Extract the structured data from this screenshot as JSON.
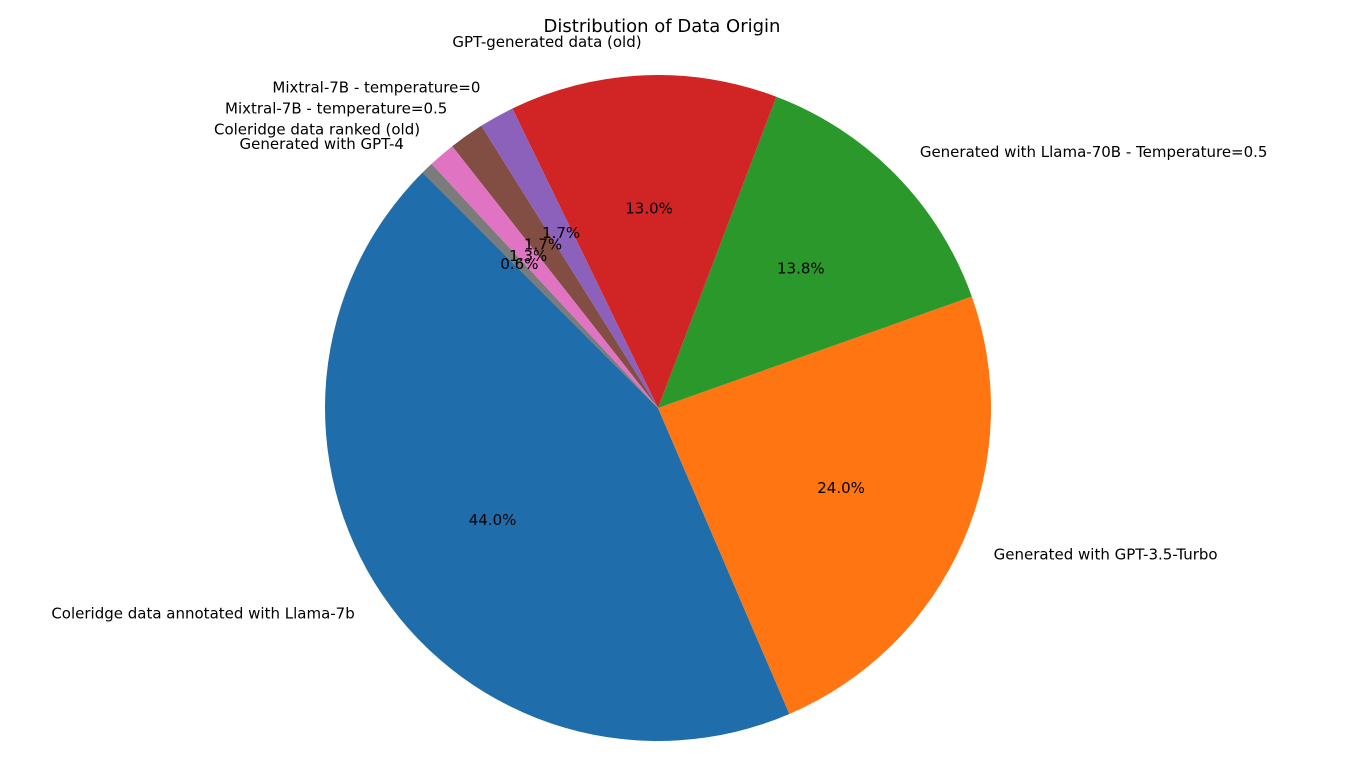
{
  "chart_data": {
    "type": "pie",
    "title": "Distribution of Data Origin",
    "start_angle_deg": 135,
    "direction": "counterclockwise",
    "slices": [
      {
        "label": "Coleridge data annotated with Llama-7b",
        "value": 44.0,
        "pct_label": "44.0%",
        "color": "#1f6eab"
      },
      {
        "label": "Generated with GPT-3.5-Turbo",
        "value": 24.0,
        "pct_label": "24.0%",
        "color": "#ff7511"
      },
      {
        "label": "Generated with Llama-70B - Temperature=0.5",
        "value": 13.8,
        "pct_label": "13.8%",
        "color": "#2a982a"
      },
      {
        "label": "GPT-generated data (old)",
        "value": 13.0,
        "pct_label": "13.0%",
        "color": "#d12424"
      },
      {
        "label": "Mixtral-7B - temperature=0",
        "value": 1.7,
        "pct_label": "1.7%",
        "color": "#8c61bb"
      },
      {
        "label": "Mixtral-7B - temperature=0.5",
        "value": 1.7,
        "pct_label": "1.7%",
        "color": "#824d42"
      },
      {
        "label": "Coleridge data ranked (old)",
        "value": 1.3,
        "pct_label": "1.3%",
        "color": "#e074c2"
      },
      {
        "label": "Generated with GPT-4",
        "value": 0.6,
        "pct_label": "0.6%",
        "color": "#7b7b7b"
      }
    ]
  }
}
